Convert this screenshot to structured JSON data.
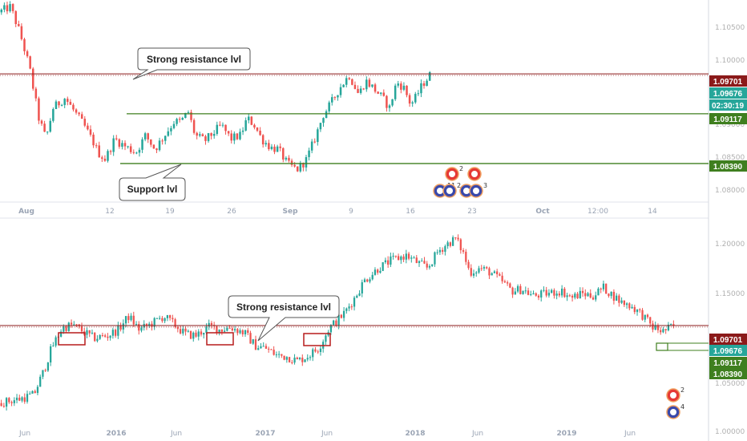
{
  "colors": {
    "up": "#26a69a",
    "down": "#ef5350",
    "resistance": "#8b1a1a",
    "support": "#3f7f1f",
    "current": "#26a69a",
    "axis_text": "#b0b0b0",
    "grid_border": "#e0e3eb"
  },
  "chart_data": [
    {
      "type": "candlestick",
      "title": "",
      "y_ticks": [
        "1.10500",
        "1.10000",
        "1.09500",
        "1.09000",
        "1.08500",
        "1.08000"
      ],
      "ylim": [
        1.0785,
        1.1078
      ],
      "x_ticks": [
        "Aug",
        "12",
        "19",
        "26",
        "Sep",
        "9",
        "16",
        "23",
        "Oct",
        "12:00",
        "14"
      ],
      "bold_x_ticks": [
        "Aug",
        "Sep",
        "Oct"
      ],
      "levels": [
        {
          "kind": "resistance",
          "value": 1.09701
        },
        {
          "kind": "range-top",
          "value": 1.09117
        },
        {
          "kind": "support",
          "value": 1.0839
        }
      ],
      "close_path": [
        [
          0.0,
          1.106
        ],
        [
          0.025,
          1.1068
        ],
        [
          0.045,
          1.103
        ],
        [
          0.065,
          1.098
        ],
        [
          0.085,
          1.0905
        ],
        [
          0.1,
          1.0875
        ],
        [
          0.115,
          1.092
        ],
        [
          0.14,
          1.0935
        ],
        [
          0.16,
          1.0915
        ],
        [
          0.18,
          1.0895
        ],
        [
          0.2,
          1.087
        ],
        [
          0.21,
          1.0855
        ],
        [
          0.225,
          1.0845
        ],
        [
          0.245,
          1.0875
        ],
        [
          0.265,
          1.0865
        ],
        [
          0.29,
          1.0855
        ],
        [
          0.31,
          1.088
        ],
        [
          0.33,
          1.086
        ],
        [
          0.35,
          1.088
        ],
        [
          0.37,
          1.09
        ],
        [
          0.385,
          1.09
        ],
        [
          0.4,
          1.0915
        ],
        [
          0.415,
          1.088
        ],
        [
          0.435,
          1.0872
        ],
        [
          0.455,
          1.0885
        ],
        [
          0.47,
          1.0895
        ],
        [
          0.49,
          1.0875
        ],
        [
          0.51,
          1.088
        ],
        [
          0.525,
          1.0905
        ],
        [
          0.54,
          1.0895
        ],
        [
          0.555,
          1.0875
        ],
        [
          0.575,
          1.0862
        ],
        [
          0.59,
          1.086
        ],
        [
          0.61,
          1.0838
        ],
        [
          0.63,
          1.083
        ],
        [
          0.65,
          1.0845
        ],
        [
          0.67,
          1.088
        ],
        [
          0.685,
          1.091
        ],
        [
          0.7,
          1.0925
        ],
        [
          0.72,
          1.095
        ],
        [
          0.74,
          1.0968
        ],
        [
          0.76,
          1.094
        ],
        [
          0.775,
          1.096
        ],
        [
          0.79,
          1.095
        ],
        [
          0.81,
          1.0935
        ],
        [
          0.825,
          1.092
        ],
        [
          0.84,
          1.0958
        ],
        [
          0.855,
          1.095
        ],
        [
          0.87,
          1.0925
        ],
        [
          0.88,
          1.0935
        ],
        [
          0.895,
          1.0955
        ],
        [
          0.91,
          1.0968
        ]
      ],
      "callouts": [
        "Strong resistance lvl",
        "Support lvl"
      ],
      "price_tags": [
        {
          "label": "1.09701",
          "kind": "resistance",
          "value": 1.09701
        },
        {
          "label": "1.09676",
          "kind": "current",
          "value": 1.09676
        },
        {
          "label": "02:30:19",
          "kind": "timer",
          "value": 1.09676
        },
        {
          "label": "1.09117",
          "kind": "support",
          "value": 1.09117
        },
        {
          "label": "1.08390",
          "kind": "support",
          "value": 1.0839
        }
      ],
      "event_badges": [
        "2",
        "11",
        "2",
        "3"
      ]
    },
    {
      "type": "candlestick",
      "title": "",
      "y_ticks": [
        "1.20000",
        "1.15000",
        "1.10000",
        "1.05000",
        "1.00000"
      ],
      "ylim": [
        0.981,
        1.2225
      ],
      "x_ticks": [
        "Jun",
        "2016",
        "Jun",
        "2017",
        "Jun",
        "2018",
        "Jun",
        "2019",
        "Jun"
      ],
      "bold_x_ticks": [
        "2016",
        "2017",
        "2018",
        "2019"
      ],
      "levels": [
        {
          "kind": "resistance",
          "value": 1.09701
        }
      ],
      "close_path": [
        [
          0.0,
          1.005
        ],
        [
          0.03,
          1.01
        ],
        [
          0.05,
          1.015
        ],
        [
          0.065,
          1.045
        ],
        [
          0.075,
          1.07
        ],
        [
          0.09,
          1.094
        ],
        [
          0.105,
          1.098
        ],
        [
          0.12,
          1.09
        ],
        [
          0.135,
          1.082
        ],
        [
          0.155,
          1.085
        ],
        [
          0.17,
          1.092
        ],
        [
          0.185,
          1.108
        ],
        [
          0.2,
          1.092
        ],
        [
          0.215,
          1.098
        ],
        [
          0.235,
          1.108
        ],
        [
          0.25,
          1.098
        ],
        [
          0.265,
          1.087
        ],
        [
          0.28,
          1.085
        ],
        [
          0.3,
          1.096
        ],
        [
          0.315,
          1.092
        ],
        [
          0.33,
          1.095
        ],
        [
          0.35,
          1.088
        ],
        [
          0.365,
          1.073
        ],
        [
          0.38,
          1.07
        ],
        [
          0.395,
          1.062
        ],
        [
          0.41,
          1.06
        ],
        [
          0.425,
          1.055
        ],
        [
          0.44,
          1.061
        ],
        [
          0.455,
          1.07
        ],
        [
          0.47,
          1.094
        ],
        [
          0.49,
          1.11
        ],
        [
          0.505,
          1.128
        ],
        [
          0.52,
          1.15
        ],
        [
          0.54,
          1.165
        ],
        [
          0.56,
          1.175
        ],
        [
          0.58,
          1.18
        ],
        [
          0.595,
          1.172
        ],
        [
          0.61,
          1.165
        ],
        [
          0.625,
          1.185
        ],
        [
          0.64,
          1.195
        ],
        [
          0.65,
          1.2
        ],
        [
          0.66,
          1.185
        ],
        [
          0.67,
          1.16
        ],
        [
          0.685,
          1.165
        ],
        [
          0.7,
          1.16
        ],
        [
          0.715,
          1.15
        ],
        [
          0.73,
          1.138
        ],
        [
          0.745,
          1.14
        ],
        [
          0.76,
          1.132
        ],
        [
          0.78,
          1.135
        ],
        [
          0.8,
          1.138
        ],
        [
          0.815,
          1.13
        ],
        [
          0.83,
          1.135
        ],
        [
          0.845,
          1.132
        ],
        [
          0.86,
          1.142
        ],
        [
          0.87,
          1.135
        ],
        [
          0.885,
          1.125
        ],
        [
          0.9,
          1.12
        ],
        [
          0.915,
          1.11
        ],
        [
          0.93,
          1.095
        ],
        [
          0.945,
          1.09
        ],
        [
          0.96,
          1.0968
        ]
      ],
      "highlight_boxes": 3,
      "callouts": [
        "Strong resistance lvl"
      ],
      "price_tags": [
        {
          "label": "1.09701",
          "kind": "resistance",
          "value": 1.09701
        },
        {
          "label": "1.09676",
          "kind": "current",
          "value": 1.09676
        },
        {
          "label": "1.09117",
          "kind": "support",
          "value": 1.09117
        },
        {
          "label": "1.08390",
          "kind": "support",
          "value": 1.0839
        }
      ],
      "event_badges": [
        "2",
        "4"
      ]
    }
  ]
}
